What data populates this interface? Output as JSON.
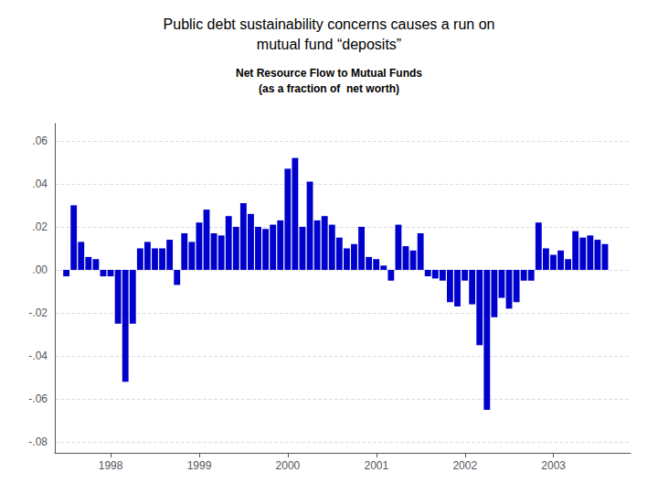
{
  "chart_data": {
    "type": "bar",
    "title": "Public debt sustainability concerns causes a run on\nmutual fund “deposits”",
    "subtitle": "Net Resource Flow to Mutual Funds\n(as a fraction of  net worth)",
    "color": "#0000CC",
    "background_color": "#FFFFFF",
    "grid": true,
    "x": [
      1997.5,
      1997.5833,
      1997.6666,
      1997.7499,
      1997.8332,
      1997.9165,
      1997.9998,
      1998.0831,
      1998.1664,
      1998.2497,
      1998.333,
      1998.4163,
      1998.4996,
      1998.5829,
      1998.6662,
      1998.7495,
      1998.8328,
      1998.9161,
      1998.9994,
      1999.0827,
      1999.166,
      1999.2493,
      1999.3326,
      1999.4159,
      1999.4992,
      1999.5825,
      1999.6658,
      1999.7491,
      1999.8324,
      1999.9157,
      1999.999,
      2000.0823,
      2000.1656,
      2000.2489,
      2000.3322,
      2000.4155,
      2000.4988,
      2000.5821,
      2000.6654,
      2000.7487,
      2000.832,
      2000.9153,
      2000.9986,
      2001.0819,
      2001.1652,
      2001.2485,
      2001.3318,
      2001.4151,
      2001.4984,
      2001.5817,
      2001.665,
      2001.7483,
      2001.8316,
      2001.9149,
      2001.9982,
      2002.0815,
      2002.1648,
      2002.2481,
      2002.3314,
      2002.4147,
      2002.498,
      2002.5813,
      2002.6646,
      2002.7479,
      2002.8312,
      2002.9145,
      2002.9978,
      2003.0811,
      2003.1644,
      2003.2477,
      2003.331,
      2003.4143,
      2003.4976,
      2003.5809
    ],
    "values": [
      -0.003,
      0.03,
      0.013,
      0.006,
      0.005,
      -0.003,
      -0.003,
      -0.025,
      -0.052,
      -0.025,
      0.01,
      0.013,
      0.01,
      0.01,
      0.014,
      -0.007,
      0.017,
      0.013,
      0.022,
      0.028,
      0.017,
      0.016,
      0.025,
      0.02,
      0.031,
      0.026,
      0.02,
      0.019,
      0.021,
      0.023,
      0.047,
      0.052,
      0.02,
      0.041,
      0.023,
      0.025,
      0.021,
      0.015,
      0.01,
      0.012,
      0.02,
      0.006,
      0.005,
      0.002,
      -0.005,
      0.021,
      0.011,
      0.009,
      0.017,
      -0.003,
      -0.004,
      -0.005,
      -0.015,
      -0.017,
      -0.005,
      -0.016,
      -0.035,
      -0.065,
      -0.022,
      -0.013,
      -0.018,
      -0.015,
      -0.005,
      -0.005,
      0.022,
      0.01,
      0.007,
      0.009,
      0.005,
      0.018,
      0.015,
      0.016,
      0.014,
      0.012
    ],
    "xlim": [
      1997.37,
      2003.87
    ],
    "xticks": [
      1998,
      1999,
      2000,
      2001,
      2002,
      2003
    ],
    "ylim": [
      -0.085,
      0.068
    ],
    "yticks": [
      {
        "value": -0.08,
        "label": "-.08"
      },
      {
        "value": -0.06,
        "label": "-.06"
      },
      {
        "value": -0.04,
        "label": "-.04"
      },
      {
        "value": -0.02,
        "label": "-.02"
      },
      {
        "value": 0.0,
        "label": ".00"
      },
      {
        "value": 0.02,
        "label": ".02"
      },
      {
        "value": 0.04,
        "label": ".04"
      },
      {
        "value": 0.06,
        "label": ".06"
      }
    ]
  }
}
